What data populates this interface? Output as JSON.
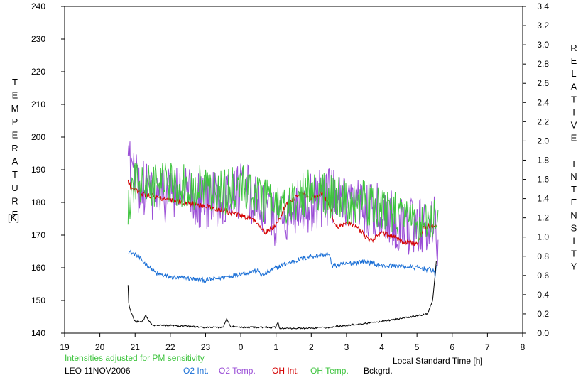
{
  "chart_data": {
    "type": "line",
    "title": "",
    "xlabel": "Local Standard Time [h]",
    "y_left_label": "TEMPERATURE",
    "y_left_unit": "[K]",
    "y_right_label": "RELATIVE INTENSITY",
    "x_ticks": [
      "19",
      "20",
      "21",
      "22",
      "23",
      "0",
      "1",
      "2",
      "3",
      "4",
      "5",
      "6",
      "7",
      "8"
    ],
    "x_range": [
      19,
      32
    ],
    "y_left_range": [
      140,
      240
    ],
    "y_left_ticks": [
      140,
      150,
      160,
      170,
      180,
      190,
      200,
      210,
      220,
      230,
      240
    ],
    "y_right_range": [
      0,
      3.4
    ],
    "y_right_ticks": [
      "0.0",
      "0.2",
      "0.4",
      "0.6",
      "0.8",
      "1.0",
      "1.2",
      "1.4",
      "1.6",
      "1.8",
      "2.0",
      "2.2",
      "2.4",
      "2.6",
      "2.8",
      "3.0",
      "3.2",
      "3.4"
    ],
    "note": "Intensities adjusted for PM sensitivity",
    "station_date": "LEO 11NOV2006",
    "grid": false,
    "legend_placement": "bottom",
    "series": [
      {
        "name": "O2 Int.",
        "color": "#1a6fd6",
        "axis": "right",
        "jitter": 0.025,
        "x": [
          20.8,
          21.0,
          21.3,
          21.6,
          22.0,
          22.5,
          23.0,
          23.5,
          24.0,
          24.5,
          24.6,
          25.0,
          25.5,
          26.0,
          26.5,
          26.6,
          27.0,
          27.5,
          28.0,
          28.5,
          29.0,
          29.5,
          29.52,
          29.55
        ],
        "values": [
          0.85,
          0.82,
          0.72,
          0.62,
          0.58,
          0.57,
          0.55,
          0.58,
          0.62,
          0.65,
          0.6,
          0.68,
          0.75,
          0.8,
          0.82,
          0.7,
          0.72,
          0.75,
          0.7,
          0.7,
          0.68,
          0.65,
          0.55,
          0.72
        ]
      },
      {
        "name": "O2 Temp.",
        "color": "#9a4dd6",
        "axis": "left",
        "jitter": 9,
        "x": [
          20.8,
          21.0,
          21.5,
          22.0,
          22.5,
          23.0,
          23.5,
          24.0,
          24.5,
          25.0,
          25.5,
          26.0,
          26.5,
          27.0,
          27.5,
          28.0,
          28.5,
          29.0,
          29.5,
          29.6
        ],
        "values": [
          196,
          186,
          182,
          183,
          182,
          180,
          182,
          184,
          180,
          175,
          178,
          180,
          182,
          178,
          178,
          177,
          174,
          172,
          174,
          168
        ]
      },
      {
        "name": "OH Int.",
        "color": "#d40000",
        "axis": "right",
        "jitter": 0.03,
        "x": [
          20.8,
          20.9,
          21.2,
          21.5,
          22.0,
          22.5,
          23.0,
          23.5,
          24.0,
          24.5,
          24.7,
          25.0,
          25.3,
          25.7,
          26.0,
          26.3,
          26.5,
          26.7,
          27.0,
          27.3,
          27.7,
          28.0,
          28.3,
          28.7,
          29.0,
          29.2,
          29.55
        ],
        "values": [
          1.58,
          1.5,
          1.45,
          1.43,
          1.38,
          1.35,
          1.32,
          1.28,
          1.22,
          1.15,
          1.05,
          1.12,
          1.35,
          1.45,
          1.4,
          1.45,
          1.35,
          1.1,
          1.15,
          1.1,
          0.95,
          1.05,
          1.0,
          0.95,
          0.92,
          1.1,
          1.12
        ]
      },
      {
        "name": "OH Temp.",
        "color": "#3ec43e",
        "axis": "left",
        "jitter": 7,
        "x": [
          20.8,
          21.0,
          21.5,
          22.0,
          22.5,
          23.0,
          23.5,
          24.0,
          24.5,
          25.0,
          25.5,
          26.0,
          26.5,
          27.0,
          27.5,
          28.0,
          28.5,
          29.0,
          29.5,
          29.6
        ],
        "values": [
          178,
          186,
          185,
          186,
          185,
          184,
          183,
          185,
          182,
          178,
          180,
          184,
          182,
          180,
          180,
          178,
          176,
          174,
          175,
          172
        ]
      },
      {
        "name": "Bckgrd.",
        "color": "#000000",
        "axis": "right",
        "jitter": 0.008,
        "x": [
          20.8,
          20.82,
          20.9,
          21.0,
          21.2,
          21.3,
          21.5,
          22.0,
          22.5,
          23.0,
          23.5,
          23.6,
          23.7,
          24.0,
          24.5,
          25.0,
          25.05,
          25.1,
          25.5,
          26.0,
          26.5,
          27.0,
          27.5,
          28.0,
          28.5,
          29.0,
          29.3,
          29.45,
          29.55
        ],
        "values": [
          0.5,
          0.3,
          0.2,
          0.12,
          0.12,
          0.18,
          0.08,
          0.08,
          0.07,
          0.06,
          0.06,
          0.15,
          0.07,
          0.06,
          0.06,
          0.06,
          0.12,
          0.05,
          0.05,
          0.05,
          0.06,
          0.08,
          0.1,
          0.12,
          0.15,
          0.18,
          0.2,
          0.35,
          0.75
        ]
      }
    ]
  }
}
